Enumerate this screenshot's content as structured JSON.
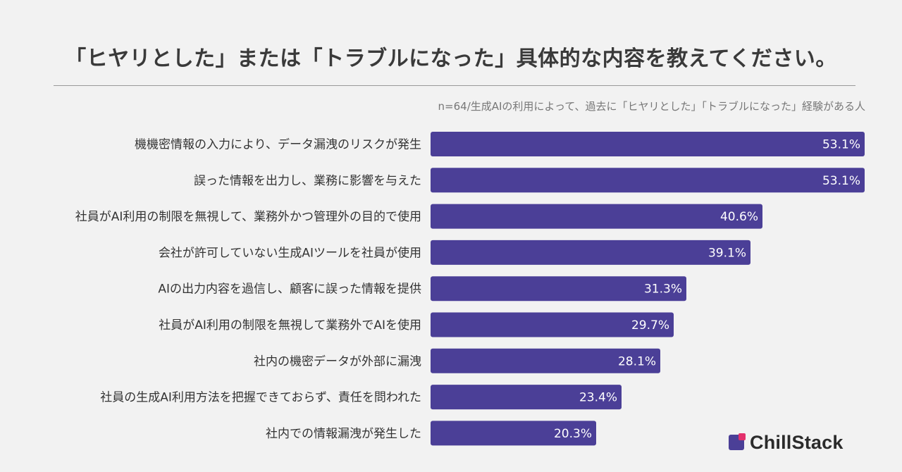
{
  "title": "「ヒヤリとした」または「トラブルになった」具体的な内容を教えてください。",
  "note": "n=64/生成AIの利用によって、過去に「ヒヤリとした」「トラブルになった」経験がある人",
  "logo": {
    "text": "ChillStack",
    "mark_color": "#4b3f97",
    "dot_color": "#e3306c"
  },
  "colors": {
    "bar": "#4b3f97",
    "background": "#f2f2f2"
  },
  "chart_data": {
    "type": "bar",
    "orientation": "horizontal",
    "unit": "%",
    "categories": [
      "機機密情報の入力により、データ漏洩のリスクが発生",
      "誤った情報を出力し、業務に影響を与えた",
      "社員がAI利用の制限を無視して、業務外かつ管理外の目的で使用",
      "会社が許可していない生成AIツールを社員が使用",
      "AIの出力内容を過信し、顧客に誤った情報を提供",
      "社員がAI利用の制限を無視して業務外でAIを使用",
      "社内の機密データが外部に漏洩",
      "社員の生成AI利用方法を把握できておらず、責任を問われた",
      "社内での情報漏洩が発生した"
    ],
    "values": [
      53.1,
      53.1,
      40.6,
      39.1,
      31.3,
      29.7,
      28.1,
      23.4,
      20.3
    ],
    "value_labels": [
      "53.1%",
      "53.1%",
      "40.6%",
      "39.1%",
      "31.3%",
      "29.7%",
      "28.1%",
      "23.4%",
      "20.3%"
    ],
    "xlim": [
      0,
      53.1
    ],
    "grid": false,
    "legend": "none"
  }
}
